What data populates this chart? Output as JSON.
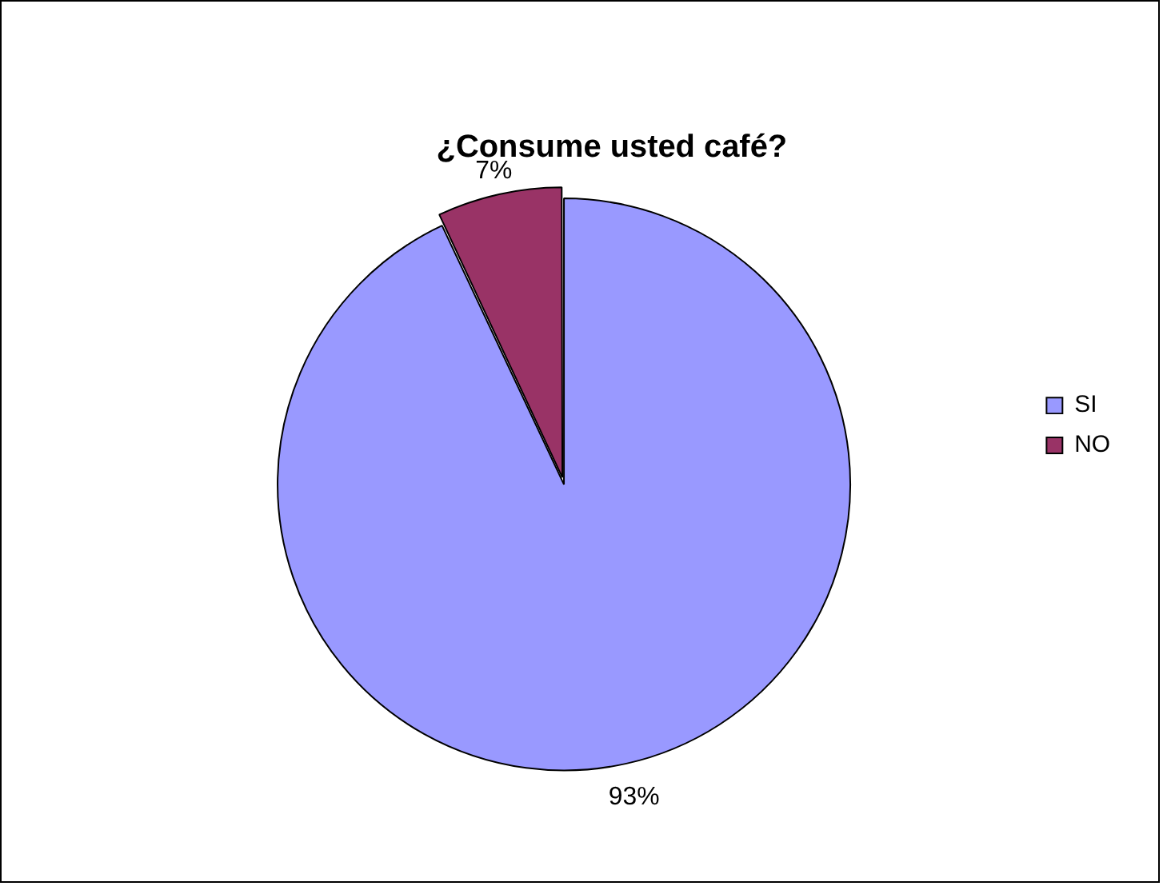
{
  "chart_data": {
    "type": "pie",
    "title": "¿Consume usted café?",
    "categories": [
      "SI",
      "NO"
    ],
    "values": [
      93,
      7
    ],
    "colors": [
      "#9999ff",
      "#993366"
    ],
    "value_labels": [
      "93%",
      "7%"
    ],
    "legend": "right"
  }
}
